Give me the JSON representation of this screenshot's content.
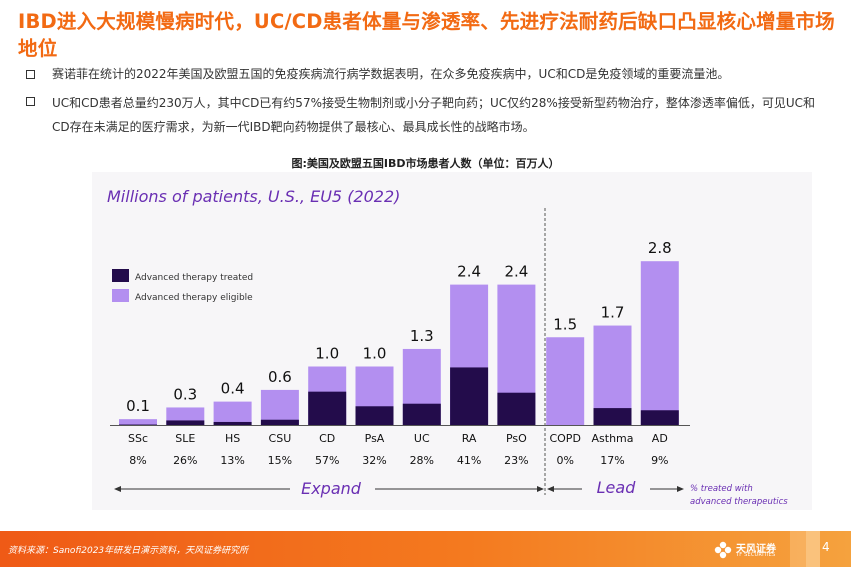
{
  "title": "IBD进入大规模慢病时代，UC/CD患者体量与渗透率、先进疗法耐药后缺口凸显核心增量市场地位",
  "bullets": [
    "赛诺菲在统计的2022年美国及欧盟五国的免疫疾病流行病学数据表明，在众多免疫疾病中，UC和CD是免疫领域的重要流量池。",
    "UC和CD患者总量约230万人，其中CD已有约57%接受生物制剂或小分子靶向药；UC仅约28%接受新型药物治疗，整体渗透率偏低，可见UC和CD存在未满足的医疗需求，为新一代IBD靶向药物提供了最核心、最具成长性的战略市场。"
  ],
  "figure_caption": "图:美国及欧盟五国IBD市场患者人数（单位：百万人）",
  "colors": {
    "accent": "#f26a13",
    "treated": "#230c4b",
    "eligible": "#b38ff0",
    "subtitle": "#6a2fb3"
  },
  "chart_data": {
    "type": "bar",
    "subtitle": "Millions of patients, U.S., EU5 (2022)",
    "legend": [
      "Advanced therapy treated",
      "Advanced therapy eligible"
    ],
    "categories": [
      "SSc",
      "SLE",
      "HS",
      "CSU",
      "CD",
      "PsA",
      "UC",
      "RA",
      "PsO",
      "COPD",
      "Asthma",
      "AD"
    ],
    "totals": [
      0.1,
      0.3,
      0.4,
      0.6,
      1.0,
      1.0,
      1.3,
      2.4,
      2.4,
      1.5,
      1.7,
      2.8
    ],
    "total_labels": [
      "0.1",
      "0.3",
      "0.4",
      "0.6",
      "1.0",
      "1.0",
      "1.3",
      "2.4",
      "2.4",
      "1.5",
      "1.7",
      "2.8"
    ],
    "treated": [
      0.008,
      0.078,
      0.052,
      0.09,
      0.57,
      0.32,
      0.364,
      0.984,
      0.552,
      0.0,
      0.289,
      0.252
    ],
    "pct_treated": [
      "8%",
      "26%",
      "13%",
      "15%",
      "57%",
      "32%",
      "28%",
      "41%",
      "23%",
      "0%",
      "17%",
      "9%"
    ],
    "groups": [
      {
        "name": "Expand",
        "from": 0,
        "to": 8
      },
      {
        "name": "Lead",
        "from": 9,
        "to": 11
      }
    ],
    "pct_note": [
      "% treated with",
      "advanced therapeutics"
    ],
    "ylim": [
      0,
      3.0
    ]
  },
  "footer": {
    "source": "资料来源：Sanofi2023年研发日演示资料，天风证券研究所",
    "logo": "天风证券",
    "logo_sub": "TF SECURITIES",
    "page": "4"
  }
}
